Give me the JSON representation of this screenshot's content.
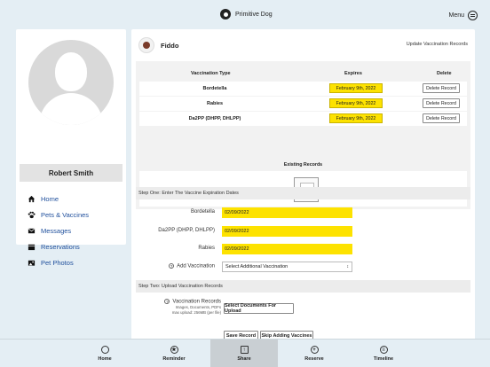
{
  "header": {
    "brand": "Primitive Dog",
    "menu_label": "Menu"
  },
  "sidebar": {
    "user_name": "Robert Smith",
    "items": [
      {
        "label": "Home",
        "icon": "home-icon"
      },
      {
        "label": "Pets & Vaccines",
        "icon": "paw-icon"
      },
      {
        "label": "Messages",
        "icon": "message-icon"
      },
      {
        "label": "Reservations",
        "icon": "calendar-icon"
      },
      {
        "label": "Pet Photos",
        "icon": "photo-icon"
      }
    ]
  },
  "main": {
    "pet_name": "Fiddo",
    "page_heading": "Update Vaccination Records",
    "table": {
      "headers": [
        "Vaccination Type",
        "Expires",
        "Delete"
      ],
      "rows": [
        {
          "name": "Bordetella",
          "expires": "February 9th, 2022",
          "action": "Delete Record"
        },
        {
          "name": "Rabies",
          "expires": "February 9th, 2022",
          "action": "Delete Record"
        },
        {
          "name": "Da2PP (DHPP, DHLPP)",
          "expires": "February 9th, 2022",
          "action": "Delete Record"
        }
      ],
      "existing_label": "Existing Records"
    },
    "step_one": {
      "bold": "Step One:",
      "text": "Enter The Vaccine Expiration Dates"
    },
    "form": [
      {
        "label": "Bordetella",
        "value": "02/09/2022"
      },
      {
        "label": "Da2PP (DHPP, DHLPP)",
        "value": "02/09/2022"
      },
      {
        "label": "Rabies",
        "value": "02/09/2022"
      }
    ],
    "add_vaccination": {
      "label": "Add Vaccination",
      "selected": "Select Additional Vaccination"
    },
    "step_two": {
      "bold": "Step Two:",
      "text": "Upload Vaccination Records"
    },
    "upload": {
      "label": "Vaccination Records",
      "hint1": "Images, Documents, PDFs",
      "hint2": "max upload: 256MB (per file)",
      "button": "Select Documents For Upload"
    },
    "actions": {
      "save": "Save Record",
      "skip": "Skip Adding Vaccines"
    }
  },
  "tabbar": {
    "tabs": [
      {
        "label": "Home",
        "icon": "home-circle-icon"
      },
      {
        "label": "Reminder",
        "icon": "reminder-icon"
      },
      {
        "label": "Share",
        "icon": "share-icon",
        "active": true
      },
      {
        "label": "Reserve",
        "icon": "plus-circle-icon"
      },
      {
        "label": "Timeline",
        "icon": "timeline-icon"
      }
    ]
  },
  "colors": {
    "accent_yellow": "#fde200",
    "link_blue": "#1f4f9c",
    "background": "#e4eef4"
  }
}
